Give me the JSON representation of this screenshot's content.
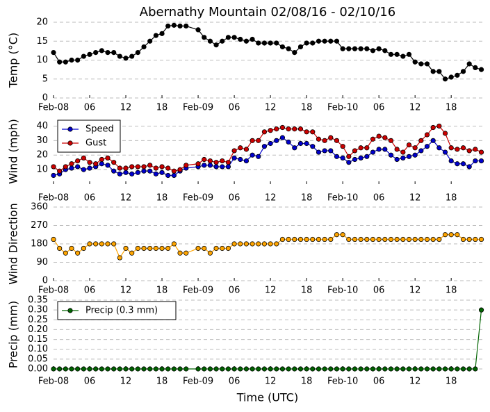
{
  "chart_data": [
    {
      "type": "line",
      "title": "Abernathy Mountain 02/08/16 - 02/10/16",
      "ylabel": "Temp (°C)",
      "x": [
        0,
        1,
        2,
        3,
        4,
        5,
        6,
        7,
        8,
        9,
        10,
        11,
        12,
        13,
        14,
        15,
        16,
        17,
        18,
        19,
        20,
        21,
        22,
        24,
        25,
        26,
        27,
        28,
        29,
        30,
        31,
        32,
        33,
        34,
        35,
        36,
        37,
        38,
        39,
        40,
        41,
        42,
        43,
        44,
        45,
        46,
        47,
        48,
        49,
        50,
        51,
        52,
        53,
        54,
        55,
        56,
        57,
        58,
        59,
        60,
        61,
        62,
        63,
        64,
        65,
        66,
        67,
        68,
        69,
        70,
        71
      ],
      "values": [
        12,
        9.5,
        9.5,
        10,
        10,
        11,
        11.5,
        12,
        12.5,
        12,
        12,
        11,
        10.5,
        11,
        12,
        13.5,
        15,
        16.5,
        17,
        19,
        19.2,
        19,
        19,
        18,
        16,
        15,
        14,
        15,
        16,
        16,
        15.5,
        15,
        15.5,
        14.5,
        14.5,
        14.5,
        14.5,
        13.5,
        13,
        12,
        13.5,
        14.5,
        14.5,
        15,
        15,
        15,
        15,
        13,
        13,
        13,
        13,
        13,
        12.5,
        13,
        12.5,
        11.5,
        11.5,
        11,
        11.5,
        9.5,
        9,
        9,
        7,
        7,
        5,
        5.5,
        6,
        7,
        9,
        8,
        7.5
      ],
      "color": "#000000",
      "xlim": [
        0,
        71.4
      ],
      "ylim": [
        0,
        20
      ],
      "yticks": [
        0,
        5,
        10,
        15,
        20
      ],
      "xticks": [
        {
          "value": 0,
          "label": "Feb-08"
        },
        {
          "value": 6,
          "label": "06"
        },
        {
          "value": 12,
          "label": "12"
        },
        {
          "value": 18,
          "label": "18"
        },
        {
          "value": 24,
          "label": "Feb-09"
        },
        {
          "value": 30,
          "label": "06"
        },
        {
          "value": 36,
          "label": "12"
        },
        {
          "value": 42,
          "label": "18"
        },
        {
          "value": 48,
          "label": "Feb-10"
        },
        {
          "value": 54,
          "label": "06"
        },
        {
          "value": 60,
          "label": "12"
        },
        {
          "value": 66,
          "label": "18"
        }
      ],
      "grid": true
    },
    {
      "type": "line",
      "ylabel": "Wind (mph)",
      "x": [
        0,
        1,
        2,
        3,
        4,
        5,
        6,
        7,
        8,
        9,
        10,
        11,
        12,
        13,
        14,
        15,
        16,
        17,
        18,
        19,
        20,
        21,
        22,
        24,
        25,
        26,
        27,
        28,
        29,
        30,
        31,
        32,
        33,
        34,
        35,
        36,
        37,
        38,
        39,
        40,
        41,
        42,
        43,
        44,
        45,
        46,
        47,
        48,
        49,
        50,
        51,
        52,
        53,
        54,
        55,
        56,
        57,
        58,
        59,
        60,
        61,
        62,
        63,
        64,
        65,
        66,
        67,
        68,
        69,
        70,
        71
      ],
      "series": [
        {
          "name": "Speed",
          "color": "#0000cc",
          "values": [
            6,
            7,
            10,
            11,
            12,
            10,
            11,
            12,
            14,
            13,
            9,
            7,
            8,
            7,
            8,
            9,
            9,
            7,
            8,
            6,
            6,
            9,
            11,
            12,
            13,
            13,
            12,
            12,
            12,
            18,
            17,
            16,
            20,
            19,
            26,
            28,
            30,
            32,
            29,
            25,
            28,
            28,
            26,
            22,
            23,
            23,
            19,
            18,
            15,
            17,
            18,
            19,
            22,
            24,
            24,
            20,
            17,
            18,
            19,
            20,
            23,
            26,
            30,
            25,
            22,
            16,
            14,
            14,
            12,
            16,
            16
          ]
        },
        {
          "name": "Gust",
          "color": "#cc0000",
          "values": [
            12,
            9,
            12,
            14,
            16,
            18,
            15,
            14,
            17,
            18,
            15,
            11,
            11,
            12,
            12,
            12,
            13,
            11,
            12,
            11,
            9,
            10,
            13,
            14,
            17,
            16,
            15,
            16,
            15,
            23,
            25,
            24,
            30,
            30,
            36,
            37,
            38,
            39,
            38,
            38,
            38,
            36,
            36,
            31,
            30,
            32,
            30,
            26,
            19,
            23,
            25,
            25,
            31,
            33,
            32,
            30,
            24,
            22,
            27,
            25,
            30,
            34,
            39,
            40,
            35,
            25,
            24,
            25,
            23,
            24,
            22
          ]
        }
      ],
      "xlim": [
        0,
        71.4
      ],
      "ylim": [
        0,
        45
      ],
      "yticks": [
        10,
        20,
        30,
        40
      ],
      "xticks": [
        {
          "value": 0,
          "label": "Feb-08"
        },
        {
          "value": 6,
          "label": "06"
        },
        {
          "value": 12,
          "label": "12"
        },
        {
          "value": 18,
          "label": "18"
        },
        {
          "value": 24,
          "label": "Feb-09"
        },
        {
          "value": 30,
          "label": "06"
        },
        {
          "value": 36,
          "label": "12"
        },
        {
          "value": 42,
          "label": "18"
        },
        {
          "value": 48,
          "label": "Feb-10"
        },
        {
          "value": 54,
          "label": "06"
        },
        {
          "value": 60,
          "label": "12"
        },
        {
          "value": 66,
          "label": "18"
        }
      ],
      "grid": true,
      "legend": "upper left"
    },
    {
      "type": "line",
      "ylabel": "Wind Direction",
      "x": [
        0,
        1,
        2,
        3,
        4,
        5,
        6,
        7,
        8,
        9,
        10,
        11,
        12,
        13,
        14,
        15,
        16,
        17,
        18,
        19,
        20,
        21,
        22,
        24,
        25,
        26,
        27,
        28,
        29,
        30,
        31,
        32,
        33,
        34,
        35,
        36,
        37,
        38,
        39,
        40,
        41,
        42,
        43,
        44,
        45,
        46,
        47,
        48,
        49,
        50,
        51,
        52,
        53,
        54,
        55,
        56,
        57,
        58,
        59,
        60,
        61,
        62,
        63,
        64,
        65,
        66,
        67,
        68,
        69,
        70,
        71
      ],
      "values": [
        202,
        158,
        135,
        158,
        135,
        158,
        180,
        180,
        180,
        180,
        180,
        112,
        158,
        135,
        158,
        158,
        158,
        158,
        158,
        158,
        180,
        135,
        135,
        158,
        158,
        135,
        158,
        158,
        158,
        180,
        180,
        180,
        180,
        180,
        180,
        180,
        180,
        202,
        202,
        202,
        202,
        202,
        202,
        202,
        202,
        202,
        225,
        225,
        202,
        202,
        202,
        202,
        202,
        202,
        202,
        202,
        202,
        202,
        202,
        202,
        202,
        202,
        202,
        202,
        225,
        225,
        225,
        202,
        202,
        202,
        202
      ],
      "color": "#ffa500",
      "xlim": [
        0,
        71.4
      ],
      "ylim": [
        0,
        360
      ],
      "yticks": [
        0,
        90,
        180,
        270,
        360
      ],
      "xticks": [
        {
          "value": 0,
          "label": "Feb-08"
        },
        {
          "value": 6,
          "label": "06"
        },
        {
          "value": 12,
          "label": "12"
        },
        {
          "value": 18,
          "label": "18"
        },
        {
          "value": 24,
          "label": "Feb-09"
        },
        {
          "value": 30,
          "label": "06"
        },
        {
          "value": 36,
          "label": "12"
        },
        {
          "value": 42,
          "label": "18"
        },
        {
          "value": 48,
          "label": "Feb-10"
        },
        {
          "value": 54,
          "label": "06"
        },
        {
          "value": 60,
          "label": "12"
        },
        {
          "value": 66,
          "label": "18"
        }
      ],
      "grid": true
    },
    {
      "type": "line",
      "ylabel": "Precip (mm)",
      "xlabel": "Time (UTC)",
      "x": [
        0,
        1,
        2,
        3,
        4,
        5,
        6,
        7,
        8,
        9,
        10,
        11,
        12,
        13,
        14,
        15,
        16,
        17,
        18,
        19,
        20,
        21,
        22,
        24,
        25,
        26,
        27,
        28,
        29,
        30,
        31,
        32,
        33,
        34,
        35,
        36,
        37,
        38,
        39,
        40,
        41,
        42,
        43,
        44,
        45,
        46,
        47,
        48,
        49,
        50,
        51,
        52,
        53,
        54,
        55,
        56,
        57,
        58,
        59,
        60,
        61,
        62,
        63,
        64,
        65,
        66,
        67,
        68,
        69,
        70,
        71
      ],
      "series": [
        {
          "name": "Precip (0.3 mm)",
          "color": "#006400",
          "values": [
            0,
            0,
            0,
            0,
            0,
            0,
            0,
            0,
            0,
            0,
            0,
            0,
            0,
            0,
            0,
            0,
            0,
            0,
            0,
            0,
            0,
            0,
            0,
            0,
            0,
            0,
            0,
            0,
            0,
            0,
            0,
            0,
            0,
            0,
            0,
            0,
            0,
            0,
            0,
            0,
            0,
            0,
            0,
            0,
            0,
            0,
            0,
            0,
            0,
            0,
            0,
            0,
            0,
            0,
            0,
            0,
            0,
            0,
            0,
            0,
            0,
            0,
            0,
            0,
            0,
            0,
            0,
            0,
            0,
            0,
            0.3
          ]
        }
      ],
      "xlim": [
        0,
        71.4
      ],
      "ylim": [
        0,
        0.35
      ],
      "yticks": [
        {
          "value": 0,
          "label": "0.00"
        },
        {
          "value": 0.05,
          "label": "0.05"
        },
        {
          "value": 0.1,
          "label": "0.10"
        },
        {
          "value": 0.15,
          "label": "0.15"
        },
        {
          "value": 0.2,
          "label": "0.20"
        },
        {
          "value": 0.25,
          "label": "0.25"
        },
        {
          "value": 0.3,
          "label": "0.30"
        },
        {
          "value": 0.35,
          "label": "0.35"
        }
      ],
      "xticks": [
        {
          "value": 0,
          "label": "Feb-08"
        },
        {
          "value": 6,
          "label": "06"
        },
        {
          "value": 12,
          "label": "12"
        },
        {
          "value": 18,
          "label": "18"
        },
        {
          "value": 24,
          "label": "Feb-09"
        },
        {
          "value": 30,
          "label": "06"
        },
        {
          "value": 36,
          "label": "12"
        },
        {
          "value": 42,
          "label": "18"
        },
        {
          "value": 48,
          "label": "Feb-10"
        },
        {
          "value": 54,
          "label": "06"
        },
        {
          "value": 60,
          "label": "12"
        },
        {
          "value": 66,
          "label": "18"
        }
      ],
      "grid": true,
      "legend": "upper left"
    }
  ]
}
